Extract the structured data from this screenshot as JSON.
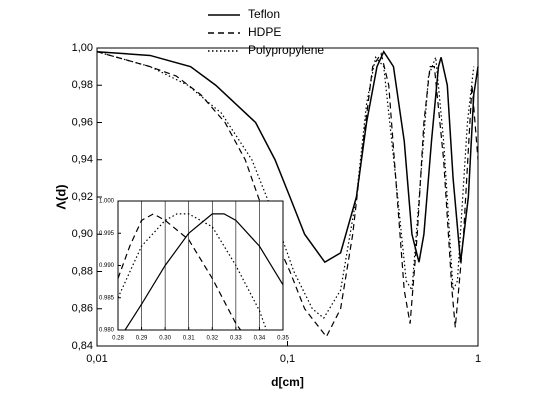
{
  "chart_data": [
    {
      "type": "line",
      "x_label": "d[cm]",
      "y_label": "Λ(d)",
      "xscale": "log",
      "legend": "top",
      "xlim": [
        0.01,
        1
      ],
      "xticks": [
        {
          "value": 0.01,
          "label": "0,01"
        },
        {
          "value": 0.1,
          "label": "0,1"
        },
        1
      ],
      "ylim": [
        0.84,
        1.0
      ],
      "yticks": [
        {
          "value": 0.84,
          "label": "0,84"
        },
        {
          "value": 0.86,
          "label": "0,86"
        },
        {
          "value": 0.88,
          "label": "0,88"
        },
        {
          "value": 0.9,
          "label": "0,90"
        },
        {
          "value": 0.92,
          "label": "0,92"
        },
        {
          "value": 0.94,
          "label": "0,94"
        },
        {
          "value": 0.96,
          "label": "0,96"
        },
        {
          "value": 0.98,
          "label": "0,98"
        },
        {
          "value": 1.0,
          "label": "1,00"
        }
      ],
      "series": [
        {
          "name": "Teflon",
          "color": "#000000",
          "dash": "solid",
          "x": [
            0.01,
            0.019,
            0.031,
            0.042,
            0.068,
            0.086,
            0.103,
            0.123,
            0.157,
            0.19,
            0.23,
            0.26,
            0.295,
            0.32,
            0.36,
            0.41,
            0.45,
            0.49,
            0.52,
            0.57,
            0.62,
            0.64,
            0.69,
            0.74,
            0.81,
            0.89,
            0.95,
            1.0
          ],
          "values": [
            0.998,
            0.996,
            0.99,
            0.98,
            0.96,
            0.94,
            0.92,
            0.9,
            0.885,
            0.89,
            0.92,
            0.96,
            0.99,
            0.998,
            0.99,
            0.95,
            0.9,
            0.885,
            0.9,
            0.95,
            0.99,
            0.995,
            0.98,
            0.93,
            0.885,
            0.92,
            0.975,
            0.99
          ]
        },
        {
          "name": "HDPE",
          "color": "#000000",
          "dash": "dashed",
          "x": [
            0.01,
            0.019,
            0.026,
            0.035,
            0.047,
            0.06,
            0.076,
            0.103,
            0.123,
            0.16,
            0.19,
            0.22,
            0.25,
            0.28,
            0.31,
            0.34,
            0.37,
            0.41,
            0.44,
            0.48,
            0.52,
            0.56,
            0.59,
            0.66,
            0.73,
            0.76,
            0.84,
            0.93,
            1.0
          ],
          "values": [
            0.998,
            0.99,
            0.985,
            0.975,
            0.96,
            0.94,
            0.91,
            0.88,
            0.86,
            0.845,
            0.86,
            0.9,
            0.95,
            0.99,
            0.997,
            0.98,
            0.93,
            0.87,
            0.852,
            0.9,
            0.96,
            0.99,
            0.99,
            0.94,
            0.87,
            0.85,
            0.9,
            0.98,
            0.94
          ]
        },
        {
          "name": "Polypropylene",
          "color": "#000000",
          "dash": "dotted",
          "x": [
            0.01,
            0.019,
            0.03,
            0.045,
            0.065,
            0.085,
            0.108,
            0.135,
            0.155,
            0.19,
            0.23,
            0.26,
            0.29,
            0.32,
            0.37,
            0.42,
            0.45,
            0.5,
            0.55,
            0.6,
            0.66,
            0.74,
            0.78,
            0.88,
            0.95
          ],
          "values": [
            0.998,
            0.99,
            0.98,
            0.965,
            0.94,
            0.91,
            0.88,
            0.86,
            0.855,
            0.87,
            0.92,
            0.97,
            0.995,
            0.99,
            0.93,
            0.875,
            0.87,
            0.93,
            0.985,
            0.995,
            0.95,
            0.87,
            0.875,
            0.96,
            0.99
          ]
        }
      ]
    },
    {
      "type": "line",
      "xgrid": true,
      "xlim": [
        0.28,
        0.35
      ],
      "xticks": [
        0.28,
        0.29,
        {
          "value": 0.3,
          "label": "0.30"
        },
        0.31,
        0.32,
        0.33,
        0.34,
        0.35
      ],
      "ylim": [
        0.98,
        1.0
      ],
      "yticks": [
        {
          "value": 0.98,
          "label": "0.980"
        },
        0.985,
        {
          "value": 0.99,
          "label": "0.990"
        },
        0.995,
        {
          "value": 1.0,
          "label": "1.000"
        }
      ],
      "series": [
        {
          "color": "#000000",
          "dash": "solid",
          "x": [
            0.283,
            0.29,
            0.3,
            0.31,
            0.32,
            0.325,
            0.33,
            0.34,
            0.35
          ],
          "values": [
            0.98,
            0.984,
            0.99,
            0.995,
            0.998,
            0.998,
            0.997,
            0.993,
            0.987
          ]
        },
        {
          "color": "#000000",
          "dash": "dashed",
          "x": [
            0.28,
            0.285,
            0.29,
            0.295,
            0.3,
            0.31,
            0.32,
            0.33,
            0.332
          ],
          "values": [
            0.988,
            0.993,
            0.997,
            0.998,
            0.997,
            0.994,
            0.988,
            0.981,
            0.98
          ]
        },
        {
          "color": "#000000",
          "dash": "dotted",
          "x": [
            0.28,
            0.29,
            0.3,
            0.305,
            0.31,
            0.32,
            0.33,
            0.34,
            0.343
          ],
          "values": [
            0.985,
            0.993,
            0.997,
            0.998,
            0.998,
            0.996,
            0.99,
            0.983,
            0.98
          ]
        }
      ]
    }
  ]
}
